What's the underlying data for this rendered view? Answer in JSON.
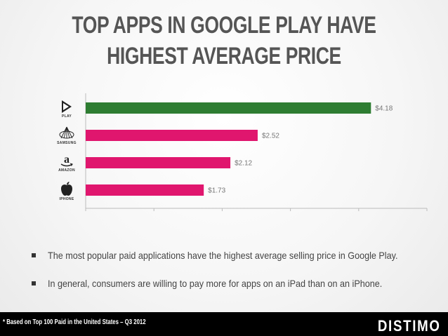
{
  "title_lines": [
    "TOP APPS IN GOOGLE PLAY HAVE",
    "HIGHEST AVERAGE PRICE"
  ],
  "chart_data": {
    "type": "bar",
    "orientation": "horizontal",
    "categories": [
      "PLAY",
      "SAMSUNG",
      "AMAZON",
      "IPHONE"
    ],
    "values": [
      4.18,
      2.52,
      2.12,
      1.73
    ],
    "data_labels": [
      "$4.18",
      "$2.52",
      "$2.12",
      "$1.73"
    ],
    "colors": [
      "#2e7d32",
      "#e0166e",
      "#e0166e",
      "#e0166e"
    ],
    "xlim": [
      0,
      5
    ],
    "grid": false,
    "legend": "none"
  },
  "bullets": [
    "The most popular paid applications have the highest average selling price in Google Play.",
    "In general, consumers are willing to pay more for apps on an iPad than on an iPhone."
  ],
  "footer": {
    "note": "* Based on Top 100 Paid in the United States – Q3 2012",
    "brand": "DISTIMO"
  },
  "icons": [
    "google-play-icon",
    "samsung-icon",
    "amazon-icon",
    "apple-icon"
  ]
}
